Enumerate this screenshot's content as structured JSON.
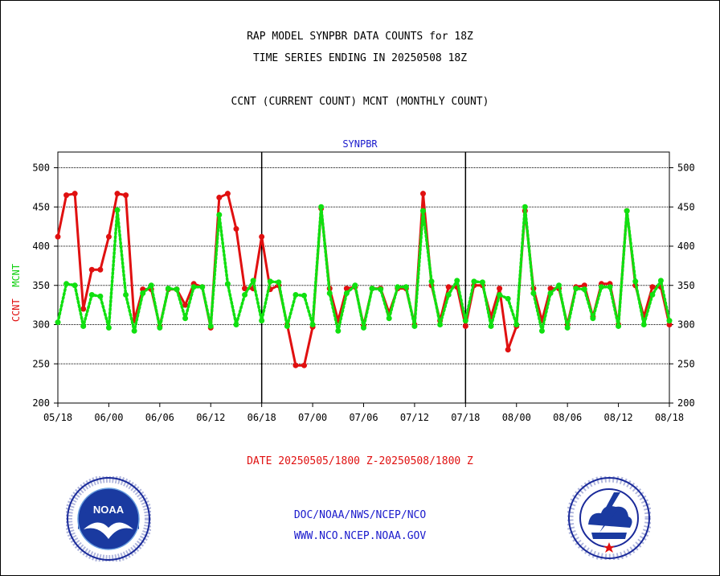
{
  "header": {
    "title_line1": "RAP MODEL SYNPBR DATA COUNTS for 18Z",
    "title_line2": "TIME SERIES ENDING IN 20250508 18Z",
    "subtitle": "CCNT (CURRENT COUNT) MCNT (MONTHLY COUNT)"
  },
  "panel_title": "SYNPBR",
  "y_axis_label": {
    "ccnt": "CCNT",
    "mcnt": "MCNT"
  },
  "date_range": "DATE 20250505/1800 Z-20250508/1800 Z",
  "footer": {
    "agency": "DOC/NOAA/NWS/NCEP/NCO",
    "website": "WWW.NCO.NCEP.NOAA.GOV"
  },
  "logos": {
    "left": "noaa-logo",
    "right": "nws-logo"
  },
  "colors": {
    "ccnt": "#e01010",
    "mcnt": "#10e010",
    "title_blue": "#1a1acc"
  },
  "chart_data": {
    "type": "line",
    "title": "SYNPBR",
    "ylim": [
      200,
      520
    ],
    "yticks": [
      200,
      250,
      300,
      350,
      400,
      450,
      500
    ],
    "xlim": [
      0,
      72
    ],
    "xticks": [
      {
        "x": 0,
        "label": "05/18"
      },
      {
        "x": 6,
        "label": "06/00"
      },
      {
        "x": 12,
        "label": "06/06"
      },
      {
        "x": 18,
        "label": "06/12"
      },
      {
        "x": 24,
        "label": "06/18"
      },
      {
        "x": 30,
        "label": "07/00"
      },
      {
        "x": 36,
        "label": "07/06"
      },
      {
        "x": 42,
        "label": "07/12"
      },
      {
        "x": 48,
        "label": "07/18"
      },
      {
        "x": 54,
        "label": "08/00"
      },
      {
        "x": 60,
        "label": "08/06"
      },
      {
        "x": 66,
        "label": "08/12"
      },
      {
        "x": 72,
        "label": "08/18"
      }
    ],
    "day_dividers": [
      24,
      48
    ],
    "grid": "horizontal dotted",
    "series": [
      {
        "name": "CCNT",
        "color": "#e01010",
        "style": "solid",
        "values": [
          412,
          465,
          467,
          320,
          370,
          370,
          412,
          467,
          465,
          305,
          345,
          345,
          298,
          345,
          345,
          325,
          352,
          348,
          296,
          462,
          467,
          422,
          346,
          346,
          412,
          345,
          350,
          300,
          248,
          248,
          297,
          448,
          346,
          305,
          346,
          348,
          299,
          346,
          346,
          315,
          346,
          346,
          300,
          467,
          350,
          305,
          348,
          348,
          298,
          350,
          350,
          310,
          346,
          268,
          298,
          445,
          346,
          305,
          346,
          346,
          300,
          348,
          350,
          310,
          352,
          352,
          300,
          445,
          350,
          310,
          348,
          348,
          300
        ]
      },
      {
        "name": "MCNT",
        "color": "#10e010",
        "style": "dotted",
        "values": [
          303,
          352,
          350,
          298,
          338,
          336,
          296,
          446,
          338,
          292,
          340,
          350,
          296,
          346,
          345,
          308,
          348,
          348,
          298,
          440,
          352,
          300,
          338,
          356,
          305,
          355,
          354,
          298,
          338,
          337,
          300,
          450,
          340,
          292,
          340,
          350,
          296,
          346,
          345,
          308,
          348,
          348,
          298,
          445,
          355,
          300,
          338,
          356,
          305,
          355,
          354,
          298,
          338,
          333,
          300,
          450,
          340,
          292,
          340,
          350,
          296,
          346,
          345,
          308,
          348,
          348,
          298,
          445,
          355,
          300,
          338,
          356,
          305
        ]
      }
    ]
  }
}
